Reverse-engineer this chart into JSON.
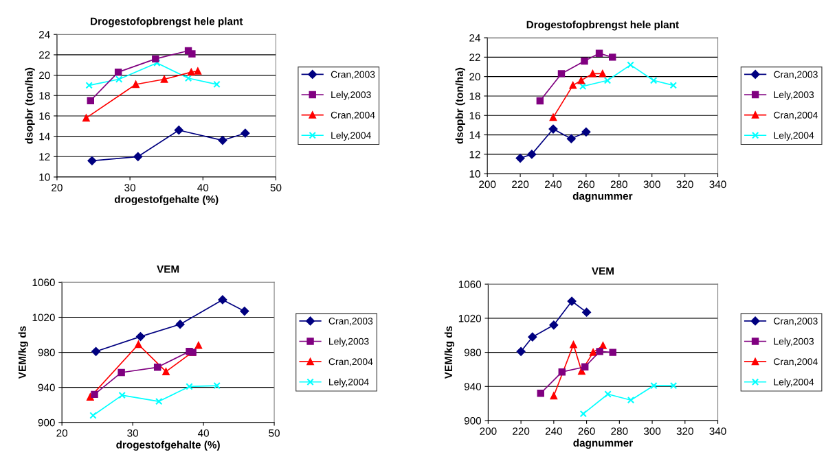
{
  "chart_data": [
    {
      "type": "line",
      "title": "Drogestofopbrengst hele plant",
      "xlabel": "drogestofgehalte (%)",
      "ylabel": "dsopbr (ton/ha)",
      "xlim": [
        20,
        50
      ],
      "xticks": [
        20,
        30,
        40,
        50
      ],
      "ylim": [
        10,
        24
      ],
      "yticks": [
        10,
        12,
        14,
        16,
        18,
        20,
        22,
        24
      ],
      "grid": "y",
      "legend": "right",
      "series": [
        {
          "name": "Cran,2003",
          "color": "#000080",
          "marker": "diamond",
          "x": [
            24.8,
            31.1,
            36.7,
            42.7,
            45.8
          ],
          "values": [
            11.6,
            12.0,
            14.6,
            13.6,
            14.3
          ]
        },
        {
          "name": "Lely,2003",
          "color": "#800080",
          "marker": "square",
          "x": [
            24.6,
            28.4,
            33.5,
            38.0,
            38.5
          ],
          "values": [
            17.5,
            20.3,
            21.6,
            22.4,
            22.1
          ]
        },
        {
          "name": "Cran,2004",
          "color": "#ff0000",
          "marker": "triangle",
          "x": [
            24.0,
            30.8,
            34.7,
            38.4,
            39.3
          ],
          "values": [
            15.8,
            19.1,
            19.6,
            20.3,
            20.4
          ]
        },
        {
          "name": "Lely,2004",
          "color": "#00ffff",
          "marker": "cross",
          "x": [
            24.4,
            28.5,
            33.7,
            38.0,
            41.9
          ],
          "values": [
            19.0,
            19.6,
            21.2,
            19.7,
            19.1
          ]
        }
      ]
    },
    {
      "type": "line",
      "title": "Drogestofopbrengst hele plant",
      "xlabel": "dagnummer",
      "ylabel": "dsopbr (ton/ha)",
      "xlim": [
        200,
        340
      ],
      "xticks": [
        200,
        220,
        240,
        260,
        280,
        300,
        320,
        340
      ],
      "ylim": [
        10,
        24
      ],
      "yticks": [
        10,
        12,
        14,
        16,
        18,
        20,
        22,
        24
      ],
      "grid": "y",
      "legend": "right",
      "series": [
        {
          "name": "Cran,2003",
          "color": "#000080",
          "marker": "diamond",
          "x": [
            220,
            227,
            240,
            251,
            260
          ],
          "values": [
            11.6,
            12.0,
            14.6,
            13.6,
            14.3
          ]
        },
        {
          "name": "Lely,2003",
          "color": "#800080",
          "marker": "square",
          "x": [
            232,
            245,
            259,
            268,
            276
          ],
          "values": [
            17.5,
            20.3,
            21.6,
            22.4,
            22.0
          ]
        },
        {
          "name": "Cran,2004",
          "color": "#ff0000",
          "marker": "triangle",
          "x": [
            240,
            252,
            257,
            264,
            270
          ],
          "values": [
            15.8,
            19.1,
            19.6,
            20.3,
            20.3
          ]
        },
        {
          "name": "Lely,2004",
          "color": "#00ffff",
          "marker": "cross",
          "x": [
            258,
            273,
            287,
            301,
            313
          ],
          "values": [
            19.0,
            19.6,
            21.2,
            19.6,
            19.1
          ]
        }
      ]
    },
    {
      "type": "line",
      "title": "VEM",
      "xlabel": "drogestofgehalte (%)",
      "ylabel": "VEM/kg ds",
      "xlim": [
        20,
        50
      ],
      "xticks": [
        20,
        30,
        40,
        50
      ],
      "ylim": [
        900,
        1060
      ],
      "yticks": [
        900,
        940,
        980,
        1020,
        1060
      ],
      "grid": "y",
      "legend": "right",
      "series": [
        {
          "name": "Cran,2003",
          "color": "#000080",
          "marker": "diamond",
          "x": [
            24.8,
            31.1,
            36.7,
            42.7,
            45.8
          ],
          "values": [
            981,
            998,
            1012,
            1040,
            1027
          ]
        },
        {
          "name": "Lely,2003",
          "color": "#800080",
          "marker": "square",
          "x": [
            24.6,
            28.4,
            33.5,
            38.0,
            38.5
          ],
          "values": [
            932,
            957,
            963,
            981,
            980
          ]
        },
        {
          "name": "Cran,2004",
          "color": "#ff0000",
          "marker": "triangle",
          "x": [
            24.0,
            30.8,
            34.7,
            38.4,
            39.3
          ],
          "values": [
            929,
            989,
            958,
            980,
            988
          ]
        },
        {
          "name": "Lely,2004",
          "color": "#00ffff",
          "marker": "cross",
          "x": [
            24.4,
            28.5,
            33.7,
            38.0,
            41.9
          ],
          "values": [
            908,
            931,
            924,
            941,
            942
          ]
        }
      ]
    },
    {
      "type": "line",
      "title": "VEM",
      "xlabel": "dagnummer",
      "ylabel": "VEM/kg ds",
      "xlim": [
        200,
        340
      ],
      "xticks": [
        200,
        220,
        240,
        260,
        280,
        300,
        320,
        340
      ],
      "ylim": [
        900,
        1060
      ],
      "yticks": [
        900,
        940,
        980,
        1020,
        1060
      ],
      "grid": "y",
      "legend": "right",
      "series": [
        {
          "name": "Cran,2003",
          "color": "#000080",
          "marker": "diamond",
          "x": [
            220,
            227,
            240,
            251,
            260
          ],
          "values": [
            981,
            998,
            1012,
            1040,
            1027
          ]
        },
        {
          "name": "Lely,2003",
          "color": "#800080",
          "marker": "square",
          "x": [
            232,
            245,
            259,
            268,
            276
          ],
          "values": [
            932,
            957,
            963,
            981,
            980
          ]
        },
        {
          "name": "Cran,2004",
          "color": "#ff0000",
          "marker": "triangle",
          "x": [
            240,
            252,
            257,
            264,
            270
          ],
          "values": [
            929,
            989,
            958,
            980,
            988
          ]
        },
        {
          "name": "Lely,2004",
          "color": "#00ffff",
          "marker": "cross",
          "x": [
            258,
            273,
            287,
            301,
            313
          ],
          "values": [
            908,
            931,
            924,
            941,
            941
          ]
        }
      ]
    }
  ]
}
